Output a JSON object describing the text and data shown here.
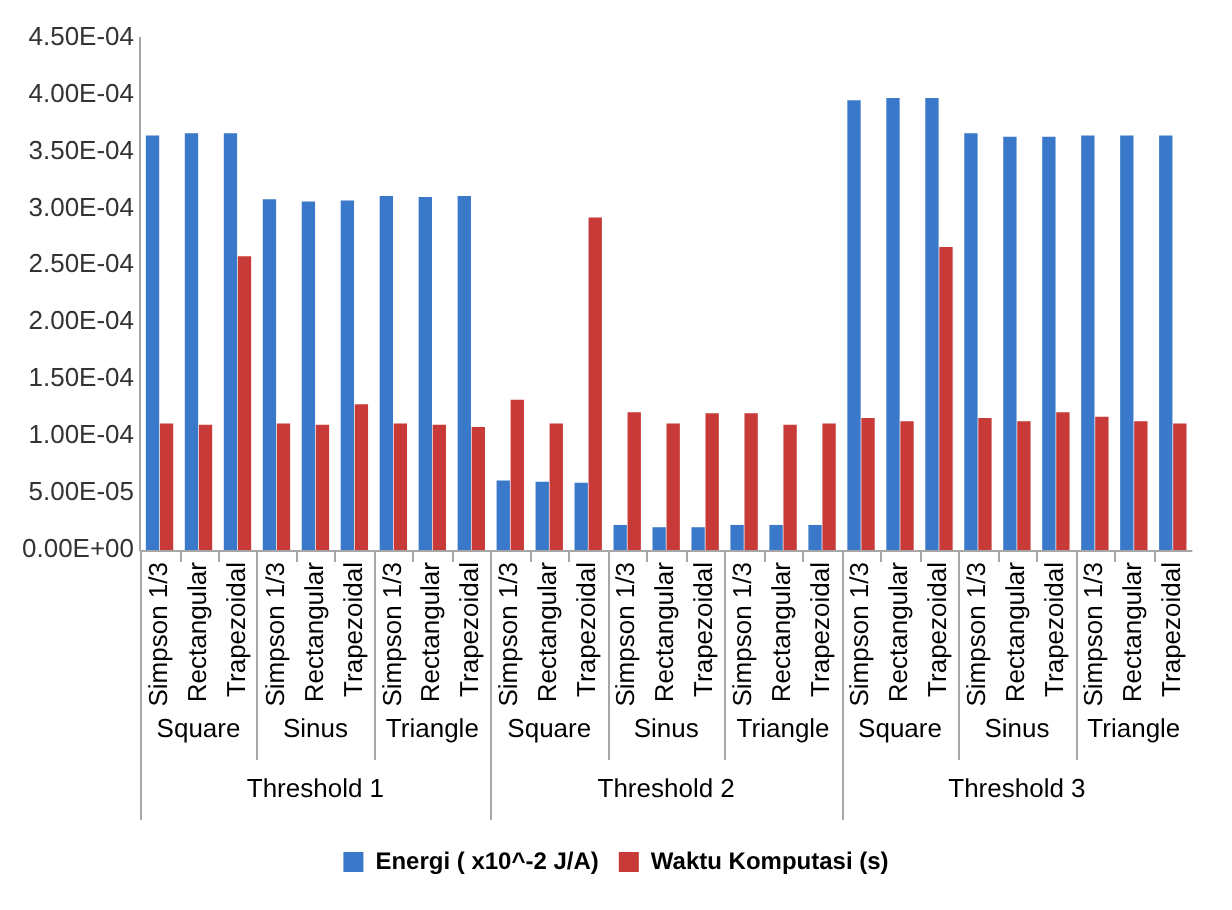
{
  "chart_data": {
    "type": "bar",
    "categories": [
      "Simpson 1/3",
      "Rectangular",
      "Trapezoidal",
      "Simpson 1/3",
      "Rectangular",
      "Trapezoidal",
      "Simpson 1/3",
      "Rectangular",
      "Trapezoidal",
      "Simpson 1/3",
      "Rectangular",
      "Trapezoidal",
      "Simpson 1/3",
      "Rectangular",
      "Trapezoidal",
      "Simpson 1/3",
      "Rectangular",
      "Trapezoidal",
      "Simpson 1/3",
      "Rectangular",
      "Trapezoidal",
      "Simpson 1/3",
      "Rectangular",
      "Trapezoidal",
      "Simpson 1/3",
      "Rectangular",
      "Trapezoidal"
    ],
    "series": [
      {
        "name": "Energi ( x10^-2 J/A)",
        "color": "#3a78c9",
        "values": [
          0.000364,
          0.000366,
          0.000366,
          0.000308,
          0.000306,
          0.000307,
          0.000311,
          0.00031,
          0.000311,
          6.1e-05,
          6e-05,
          5.9e-05,
          2.2e-05,
          2e-05,
          2e-05,
          2.2e-05,
          2.2e-05,
          2.2e-05,
          0.000395,
          0.000397,
          0.000397,
          0.000366,
          0.000363,
          0.000363,
          0.000364,
          0.000364,
          0.000364
        ]
      },
      {
        "name": "Waktu Komputasi (s)",
        "color": "#c83a37",
        "values": [
          0.000111,
          0.00011,
          0.000258,
          0.000111,
          0.00011,
          0.000128,
          0.000111,
          0.00011,
          0.000108,
          0.000132,
          0.000111,
          0.000292,
          0.000121,
          0.000111,
          0.00012,
          0.00012,
          0.00011,
          0.000111,
          0.000116,
          0.000113,
          0.000266,
          0.000116,
          0.000113,
          0.000121,
          0.000117,
          0.000113,
          0.000111
        ]
      }
    ],
    "annotations": [
      "Square",
      "Sinus",
      "Triangle",
      "Square",
      "Sinus",
      "Triangle",
      "Square",
      "Sinus",
      "Triangle",
      "Threshold 1",
      "Threshold 2",
      "Threshold 3"
    ],
    "ylim": [
      0,
      0.00045
    ],
    "yticks": [
      {
        "value": 0,
        "label": "0.00E+00"
      },
      {
        "value": 5e-05,
        "label": "5.00E-05"
      },
      {
        "value": 0.0001,
        "label": "1.00E-04"
      },
      {
        "value": 0.00015,
        "label": "1.50E-04"
      },
      {
        "value": 0.0002,
        "label": "2.00E-04"
      },
      {
        "value": 0.00025,
        "label": "2.50E-04"
      },
      {
        "value": 0.0003,
        "label": "3.00E-04"
      },
      {
        "value": 0.00035,
        "label": "3.50E-04"
      },
      {
        "value": 0.0004,
        "label": "4.00E-04"
      },
      {
        "value": 0.00045,
        "label": "4.50E-04"
      }
    ],
    "grid": false,
    "legend": "bottom"
  }
}
